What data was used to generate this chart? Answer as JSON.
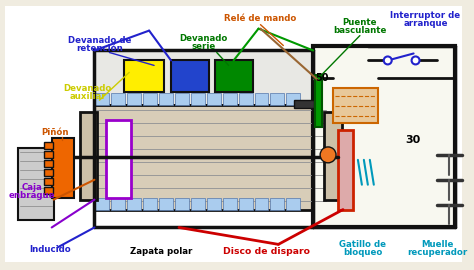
{
  "bg_color": "#f0ece0",
  "colors": {
    "bg": "#f0ece0",
    "black": "#111111",
    "blue_label": "#2222cc",
    "green_label": "#007700",
    "orange_label": "#cc5500",
    "red_label": "#cc0000",
    "cyan_label": "#0099bb",
    "yellow_label": "#cccc00",
    "purple_label": "#8800cc",
    "yellow_box": "#ffee00",
    "blue_box": "#2244cc",
    "green_box": "#008800",
    "orange_gear": "#ee6600",
    "purple_coil": "#9900cc",
    "motor_fill": "#d8cdb8",
    "motor_stripe": "#999999",
    "hatch_fill": "#aaccee",
    "hatch_edge": "#5577aa",
    "relay_fill": "#e8c89a",
    "relay_edge": "#cc6600",
    "green_switch": "#009900",
    "right_box_fill": "#f8f8f0",
    "spring_fill": "#aaddee",
    "spring_edge": "#3399bb",
    "shaft_color": "#333333",
    "orange_connector": "#ee7722",
    "blue_wire": "#2222cc",
    "green_wire": "#009900",
    "red_wire": "#cc0000",
    "brown_wire": "#996633",
    "inducido_color": "#224488",
    "disk_red": "#cc2200"
  },
  "labels": {
    "devanado_retencion": [
      "Devanado de",
      "retención"
    ],
    "devanado_serie": [
      "Devanado",
      "serie"
    ],
    "devanado_auxiliar": [
      "Devanado",
      "auxiliar"
    ],
    "pinon": "Piñón",
    "caja_embrague": [
      "Caja",
      "enbrague"
    ],
    "inducido": "Inducido",
    "zapata_polar": "Zapata polar",
    "disco_disparo": "Disco de disparo",
    "gatillo_bloqueo": [
      "Gatillo de",
      "bloqueo"
    ],
    "muelle_recuperador": [
      "Muelle",
      "recuperador"
    ],
    "rele_mando": "Relé de mando",
    "puente_basculante": [
      "Puente",
      "basculante"
    ],
    "interruptor_arranque": [
      "Interruptor de",
      "arranque"
    ],
    "num_50": "50",
    "num_30": "30"
  }
}
